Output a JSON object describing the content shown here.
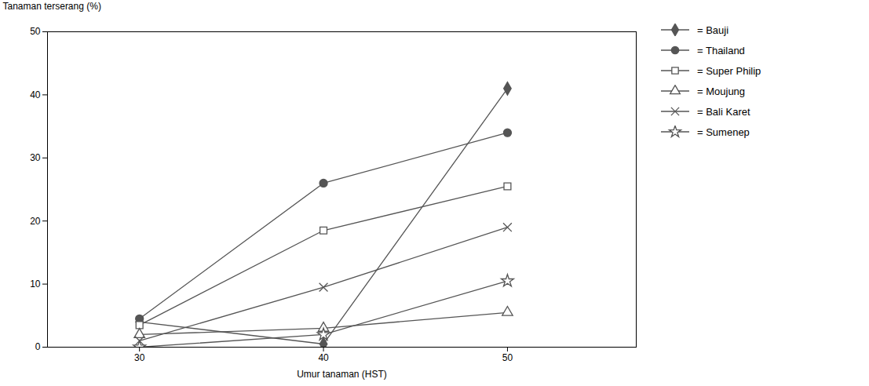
{
  "chart_data": {
    "type": "line",
    "x": [
      30,
      40,
      50
    ],
    "series": [
      {
        "name": "= Bauji",
        "color": "#555555",
        "marker": "filled-diamond",
        "values": [
          4.0,
          0.5,
          41.0
        ]
      },
      {
        "name": "= Thailand",
        "color": "#555555",
        "marker": "filled-circle",
        "values": [
          4.5,
          26.0,
          34.0
        ]
      },
      {
        "name": "= Super Philip",
        "color": "#555555",
        "marker": "open-square",
        "values": [
          3.5,
          18.5,
          25.5
        ]
      },
      {
        "name": "= Moujung",
        "color": "#555555",
        "marker": "open-triangle",
        "values": [
          2.0,
          3.0,
          5.5
        ]
      },
      {
        "name": "= Bali Karet",
        "color": "#555555",
        "marker": "x",
        "values": [
          1.0,
          9.5,
          19.0
        ]
      },
      {
        "name": "= Sumenep",
        "color": "#555555",
        "marker": "open-star",
        "values": [
          0.0,
          2.0,
          10.5
        ]
      }
    ],
    "xlabel": "Umur tanaman (HST)",
    "ylabel": "Tanaman terserang (%)",
    "xlim": [
      25,
      57
    ],
    "ylim": [
      0,
      50
    ],
    "xticks": [
      30,
      40,
      50
    ],
    "yticks": [
      0,
      10,
      20,
      30,
      40,
      50
    ],
    "grid": false,
    "legend": "right"
  }
}
